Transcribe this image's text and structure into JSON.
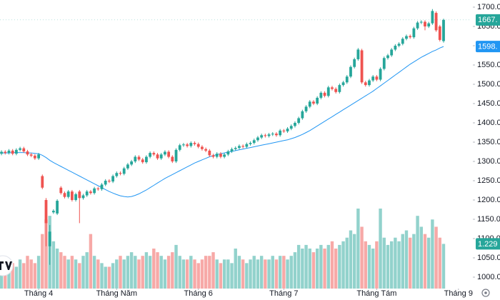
{
  "chart_data": {
    "type": "candlestick",
    "open": [
      1320,
      1325,
      1322,
      1328,
      1320,
      1330,
      1334,
      1326,
      1318,
      1315,
      1308,
      1262,
      1200,
      1080,
      1168,
      1165,
      1232,
      1218,
      1208,
      1222,
      1200,
      1222,
      1205,
      1212,
      1222,
      1218,
      1230,
      1228,
      1240,
      1250,
      1248,
      1262,
      1270,
      1268,
      1282,
      1292,
      1300,
      1312,
      1305,
      1298,
      1312,
      1322,
      1318,
      1308,
      1318,
      1325,
      1312,
      1300,
      1330,
      1342,
      1344,
      1340,
      1348,
      1345,
      1338,
      1332,
      1328,
      1316,
      1312,
      1320,
      1312,
      1318,
      1326,
      1332,
      1335,
      1340,
      1338,
      1345,
      1348,
      1355,
      1362,
      1368,
      1366,
      1370,
      1372,
      1368,
      1380,
      1378,
      1385,
      1392,
      1400,
      1412,
      1430,
      1442,
      1455,
      1450,
      1465,
      1478,
      1470,
      1492,
      1488,
      1480,
      1498,
      1505,
      1520,
      1545,
      1565,
      1588,
      1505,
      1498,
      1510,
      1520,
      1512,
      1540,
      1568,
      1575,
      1590,
      1600,
      1605,
      1618,
      1625,
      1622,
      1645,
      1660,
      1662,
      1650,
      1658,
      1685,
      1650,
      1612
    ],
    "high": [
      1329,
      1329,
      1332,
      1332,
      1334,
      1338,
      1338,
      1330,
      1322,
      1319,
      1322,
      1266,
      1205,
      1135,
      1176,
      1202,
      1236,
      1222,
      1226,
      1226,
      1219,
      1226,
      1216,
      1226,
      1226,
      1234,
      1234,
      1244,
      1254,
      1254,
      1266,
      1274,
      1274,
      1286,
      1296,
      1304,
      1316,
      1316,
      1309,
      1316,
      1326,
      1326,
      1322,
      1322,
      1329,
      1329,
      1316,
      1334,
      1346,
      1348,
      1348,
      1352,
      1352,
      1349,
      1342,
      1336,
      1332,
      1320,
      1324,
      1324,
      1322,
      1330,
      1336,
      1339,
      1344,
      1344,
      1349,
      1352,
      1359,
      1366,
      1372,
      1372,
      1374,
      1376,
      1376,
      1384,
      1384,
      1389,
      1396,
      1404,
      1416,
      1434,
      1446,
      1459,
      1459,
      1469,
      1482,
      1482,
      1496,
      1496,
      1492,
      1502,
      1509,
      1524,
      1549,
      1569,
      1594,
      1592,
      1509,
      1514,
      1524,
      1524,
      1544,
      1572,
      1579,
      1594,
      1604,
      1609,
      1622,
      1629,
      1629,
      1649,
      1664,
      1666,
      1666,
      1662,
      1695,
      1689,
      1654,
      1670
    ],
    "low": [
      1316,
      1318,
      1318,
      1316,
      1316,
      1326,
      1322,
      1314,
      1311,
      1304,
      1304,
      1228,
      1080,
      1032,
      1164,
      1161,
      1214,
      1204,
      1204,
      1196,
      1196,
      1140,
      1201,
      1208,
      1214,
      1214,
      1224,
      1224,
      1236,
      1244,
      1244,
      1258,
      1264,
      1264,
      1278,
      1288,
      1296,
      1301,
      1294,
      1294,
      1308,
      1314,
      1304,
      1304,
      1314,
      1308,
      1296,
      1296,
      1326,
      1338,
      1336,
      1336,
      1341,
      1334,
      1328,
      1324,
      1312,
      1308,
      1308,
      1308,
      1308,
      1314,
      1322,
      1328,
      1331,
      1334,
      1334,
      1341,
      1344,
      1351,
      1358,
      1362,
      1362,
      1366,
      1364,
      1364,
      1374,
      1374,
      1381,
      1388,
      1396,
      1408,
      1426,
      1438,
      1446,
      1446,
      1461,
      1466,
      1466,
      1484,
      1476,
      1476,
      1494,
      1501,
      1516,
      1541,
      1561,
      1501,
      1494,
      1494,
      1506,
      1508,
      1508,
      1536,
      1564,
      1571,
      1586,
      1596,
      1601,
      1614,
      1618,
      1618,
      1641,
      1656,
      1640,
      1646,
      1654,
      1636,
      1611,
      1608
    ],
    "close": [
      1325,
      1322,
      1328,
      1320,
      1330,
      1334,
      1326,
      1318,
      1315,
      1308,
      1318,
      1232,
      1140,
      1118,
      1172,
      1198,
      1218,
      1208,
      1222,
      1200,
      1215,
      1205,
      1212,
      1222,
      1218,
      1230,
      1228,
      1240,
      1250,
      1248,
      1262,
      1270,
      1268,
      1282,
      1292,
      1300,
      1312,
      1305,
      1298,
      1312,
      1322,
      1318,
      1308,
      1318,
      1325,
      1312,
      1300,
      1330,
      1342,
      1344,
      1340,
      1348,
      1345,
      1338,
      1332,
      1328,
      1316,
      1312,
      1320,
      1312,
      1318,
      1326,
      1332,
      1335,
      1340,
      1338,
      1345,
      1348,
      1355,
      1362,
      1368,
      1366,
      1370,
      1372,
      1368,
      1380,
      1378,
      1385,
      1392,
      1400,
      1412,
      1430,
      1442,
      1455,
      1450,
      1465,
      1478,
      1470,
      1492,
      1488,
      1480,
      1498,
      1505,
      1520,
      1545,
      1565,
      1590,
      1505,
      1498,
      1510,
      1520,
      1512,
      1540,
      1568,
      1575,
      1590,
      1600,
      1605,
      1618,
      1625,
      1622,
      1645,
      1660,
      1662,
      1650,
      1658,
      1690,
      1640,
      1615,
      1667
    ],
    "volume": [
      0.7,
      0.6,
      0.8,
      0.7,
      0.6,
      0.8,
      0.7,
      0.9,
      0.8,
      0.7,
      0.9,
      1.5,
      1.9,
      2.0,
      1.3,
      1.1,
      1.0,
      0.9,
      0.8,
      0.9,
      0.8,
      0.7,
      0.9,
      1.0,
      1.5,
      0.9,
      0.8,
      0.7,
      0.6,
      0.6,
      0.7,
      0.8,
      0.9,
      0.8,
      0.9,
      1.0,
      0.9,
      0.8,
      0.9,
      1.0,
      0.9,
      1.1,
      1.0,
      0.9,
      0.8,
      0.9,
      1.0,
      1.2,
      0.9,
      0.8,
      0.8,
      0.9,
      0.8,
      0.7,
      0.8,
      0.9,
      0.9,
      1.0,
      0.8,
      0.7,
      0.8,
      0.8,
      0.7,
      1.1,
      0.9,
      0.8,
      0.7,
      0.8,
      0.9,
      0.8,
      0.9,
      0.8,
      0.8,
      0.9,
      0.8,
      0.9,
      0.9,
      0.8,
      0.9,
      1.0,
      1.2,
      1.1,
      1.2,
      1.1,
      1.0,
      1.1,
      1.2,
      1.1,
      1.2,
      1.3,
      1.1,
      1.2,
      1.3,
      1.4,
      1.6,
      1.5,
      2.2,
      1.7,
      1.3,
      1.2,
      1.1,
      1.3,
      2.2,
      1.4,
      1.2,
      1.3,
      1.4,
      1.3,
      1.5,
      1.6,
      1.4,
      1.5,
      2.0,
      1.7,
      1.5,
      1.4,
      1.9,
      1.7,
      1.4,
      1.229
    ],
    "ma": [
      1322,
      1322,
      1322,
      1323,
      1323,
      1323,
      1323,
      1322,
      1322,
      1321,
      1320,
      1316,
      1310,
      1303,
      1297,
      1292,
      1287,
      1282,
      1277,
      1272,
      1267,
      1262,
      1257,
      1252,
      1247,
      1242,
      1237,
      1232,
      1227,
      1222,
      1218,
      1214,
      1211,
      1209,
      1208,
      1209,
      1212,
      1216,
      1221,
      1226,
      1232,
      1238,
      1244,
      1250,
      1256,
      1261,
      1266,
      1271,
      1276,
      1281,
      1286,
      1291,
      1296,
      1300,
      1304,
      1308,
      1312,
      1315,
      1318,
      1320,
      1322,
      1324,
      1326,
      1328,
      1330,
      1332,
      1334,
      1336,
      1338,
      1340,
      1342,
      1344,
      1346,
      1348,
      1350,
      1352,
      1354,
      1356,
      1359,
      1362,
      1366,
      1370,
      1375,
      1380,
      1386,
      1392,
      1398,
      1404,
      1410,
      1416,
      1422,
      1428,
      1434,
      1440,
      1446,
      1452,
      1458,
      1464,
      1470,
      1476,
      1482,
      1489,
      1496,
      1503,
      1510,
      1517,
      1524,
      1531,
      1538,
      1545,
      1552,
      1558,
      1564,
      1570,
      1575,
      1580,
      1585,
      1589,
      1594,
      1598
    ],
    "up_color": "#26a69a",
    "down_color": "#ef5350",
    "ma_color": "#2196f3",
    "close_label": "1667.",
    "ma_label": "1598.",
    "volume_label": "1.229",
    "xlim": [
      -0.4,
      126.5
    ],
    "xticks": [
      {
        "value": 10,
        "label": "Tháng 4"
      },
      {
        "value": 31,
        "label": "Tháng Năm"
      },
      {
        "value": 53,
        "label": "Tháng 6"
      },
      {
        "value": 76,
        "label": "Tháng 7"
      },
      {
        "value": 101,
        "label": "Tháng Tám"
      },
      {
        "value": 123,
        "label": "Tháng 9"
      }
    ],
    "ylim": [
      1000,
      1700
    ],
    "yticks": [
      {
        "value": 1700,
        "label": "1700.0"
      },
      {
        "value": 1650,
        "label": "1650.0"
      },
      {
        "value": 1600,
        "label": "1600.0"
      },
      {
        "value": 1550,
        "label": "1550.0"
      },
      {
        "value": 1500,
        "label": "1500.0"
      },
      {
        "value": 1450,
        "label": "1450.0"
      },
      {
        "value": 1400,
        "label": "1400.0"
      },
      {
        "value": 1350,
        "label": "1350.0"
      },
      {
        "value": 1300,
        "label": "1300.0"
      },
      {
        "value": 1250,
        "label": "1250.0"
      },
      {
        "value": 1200,
        "label": "1200.0"
      },
      {
        "value": 1150,
        "label": "1150.0"
      },
      {
        "value": 1100,
        "label": "1100.0"
      },
      {
        "value": 1050,
        "label": "1050.0"
      },
      {
        "value": 1000,
        "label": "1000.0"
      }
    ]
  }
}
